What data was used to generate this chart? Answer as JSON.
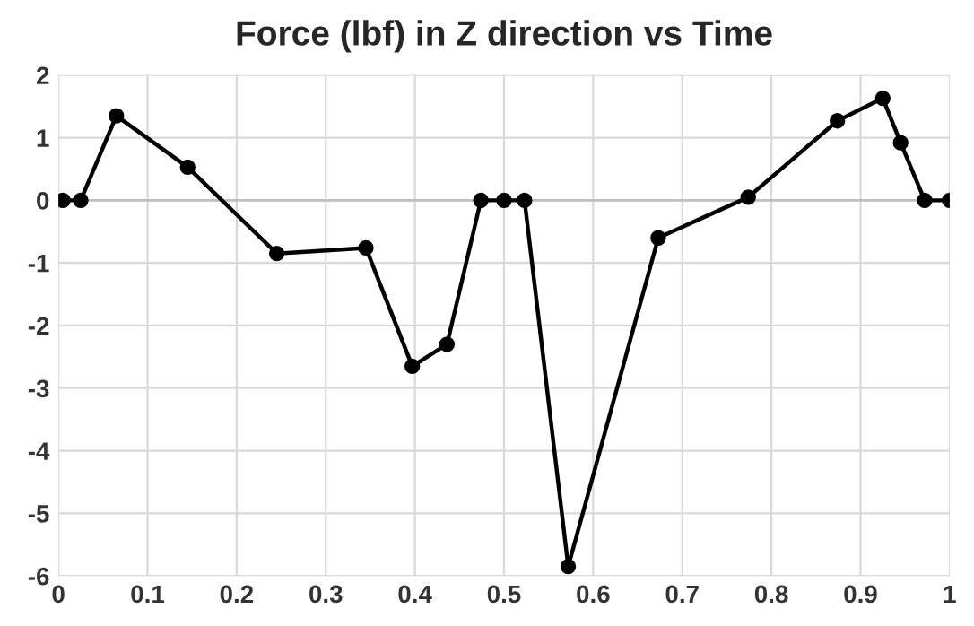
{
  "chart_data": {
    "type": "line",
    "title": "Force (lbf) in Z direction vs Time",
    "x": [
      0.005,
      0.025,
      0.065,
      0.145,
      0.245,
      0.345,
      0.397,
      0.436,
      0.474,
      0.5,
      0.523,
      0.572,
      0.673,
      0.774,
      0.874,
      0.925,
      0.945,
      0.972,
      1.0
    ],
    "series": [
      {
        "color": "#000000",
        "values": [
          0,
          0,
          1.35,
          0.53,
          -0.85,
          -0.76,
          -2.65,
          -2.3,
          0,
          0,
          0,
          -5.85,
          -0.6,
          0.05,
          1.27,
          1.63,
          0.92,
          0,
          0
        ]
      }
    ],
    "xlim": [
      0,
      1
    ],
    "xticks": [
      0,
      0.1,
      0.2,
      0.3,
      0.4,
      0.5,
      0.6,
      0.7,
      0.8,
      0.9,
      1
    ],
    "ylim": [
      -6,
      2
    ],
    "yticks": [
      -6,
      -5,
      -4,
      -3,
      -2,
      -1,
      0,
      1,
      2
    ],
    "grid": true,
    "marker": "circle",
    "line_style": "solid"
  }
}
